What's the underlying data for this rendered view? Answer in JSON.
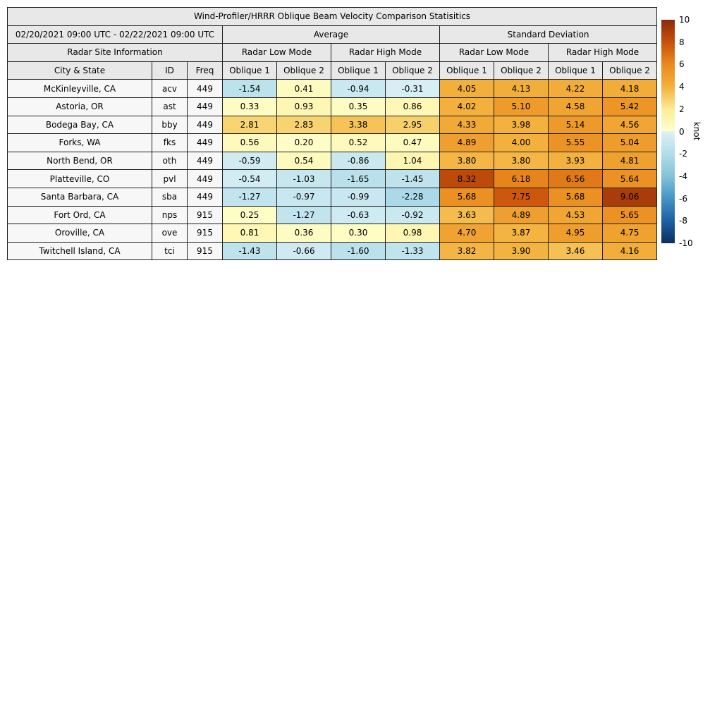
{
  "title": "Wind-Profiler/HRRR Oblique Beam Velocity Comparison Statisitics",
  "header": {
    "date_range": "02/20/2021 09:00 UTC - 02/22/2021 09:00 UTC",
    "group_average": "Average",
    "group_std": "Standard Deviation",
    "radar_site_info": "Radar Site Information",
    "low_mode": "Radar Low Mode",
    "high_mode": "Radar High Mode",
    "col_city": "City & State",
    "col_id": "ID",
    "col_freq": "Freq",
    "oblique1": "Oblique 1",
    "oblique2": "Oblique 2"
  },
  "chart_data": {
    "type": "heatmap",
    "value_unit": "knot",
    "columns": [
      "Average Radar Low Mode Oblique 1",
      "Average Radar Low Mode Oblique 2",
      "Average Radar High Mode Oblique 1",
      "Average Radar High Mode Oblique 2",
      "Standard Deviation Radar Low Mode Oblique 1",
      "Standard Deviation Radar Low Mode Oblique 2",
      "Standard Deviation Radar High Mode Oblique 1",
      "Standard Deviation Radar High Mode Oblique 2"
    ],
    "rows": [
      {
        "city": "McKinleyville, CA",
        "id": "acv",
        "freq": "449",
        "values": [
          -1.54,
          0.41,
          -0.94,
          -0.31,
          4.05,
          4.13,
          4.22,
          4.18
        ]
      },
      {
        "city": "Astoria, OR",
        "id": "ast",
        "freq": "449",
        "values": [
          0.33,
          0.93,
          0.35,
          0.86,
          4.02,
          5.1,
          4.58,
          5.42
        ]
      },
      {
        "city": "Bodega Bay, CA",
        "id": "bby",
        "freq": "449",
        "values": [
          2.81,
          2.83,
          3.38,
          2.95,
          4.33,
          3.98,
          5.14,
          4.56
        ]
      },
      {
        "city": "Forks, WA",
        "id": "fks",
        "freq": "449",
        "values": [
          0.56,
          0.2,
          0.52,
          0.47,
          4.89,
          4.0,
          5.55,
          5.04
        ]
      },
      {
        "city": "North Bend, OR",
        "id": "oth",
        "freq": "449",
        "values": [
          -0.59,
          0.54,
          -0.86,
          1.04,
          3.8,
          3.8,
          3.93,
          4.81
        ]
      },
      {
        "city": "Platteville, CO",
        "id": "pvl",
        "freq": "449",
        "values": [
          -0.54,
          -1.03,
          -1.65,
          -1.45,
          8.32,
          6.18,
          6.56,
          5.64
        ]
      },
      {
        "city": "Santa Barbara, CA",
        "id": "sba",
        "freq": "449",
        "values": [
          -1.27,
          -0.97,
          -0.99,
          -2.28,
          5.68,
          7.75,
          5.68,
          9.06
        ]
      },
      {
        "city": "Fort Ord, CA",
        "id": "nps",
        "freq": "915",
        "values": [
          0.25,
          -1.27,
          -0.63,
          -0.92,
          3.63,
          4.89,
          4.53,
          5.65
        ]
      },
      {
        "city": "Oroville, CA",
        "id": "ove",
        "freq": "915",
        "values": [
          0.81,
          0.36,
          0.3,
          0.98,
          4.7,
          3.87,
          4.95,
          4.75
        ]
      },
      {
        "city": "Twitchell Island, CA",
        "id": "tci",
        "freq": "915",
        "values": [
          -1.43,
          -0.66,
          -1.6,
          -1.33,
          3.82,
          3.9,
          3.46,
          4.16
        ]
      }
    ]
  },
  "colorbar": {
    "label": "knot",
    "min": -10,
    "max": 10,
    "ticks": [
      10,
      8,
      6,
      4,
      2,
      0,
      -2,
      -4,
      -6,
      -8,
      -10
    ],
    "stops": [
      {
        "v": -10,
        "c": "#0a2f60"
      },
      {
        "v": -8,
        "c": "#1d5fa5"
      },
      {
        "v": -6,
        "c": "#4494c6"
      },
      {
        "v": -4,
        "c": "#84c2d8"
      },
      {
        "v": -2,
        "c": "#b2dde9"
      },
      {
        "v": -0.001,
        "c": "#ddf1f6"
      },
      {
        "v": 0,
        "c": "#ffffcc"
      },
      {
        "v": 2,
        "c": "#fcec96"
      },
      {
        "v": 4,
        "c": "#f3b03c"
      },
      {
        "v": 6,
        "c": "#ea8a1e"
      },
      {
        "v": 8,
        "c": "#c8500a"
      },
      {
        "v": 10,
        "c": "#8c2a0a"
      }
    ]
  },
  "colors": {
    "header_bg": "#e8e8e8",
    "label_bg": "#f7f7f7",
    "border": "#1f1f1f",
    "text": "#000000"
  }
}
